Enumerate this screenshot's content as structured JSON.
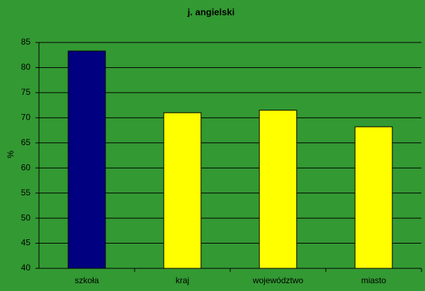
{
  "chart_data": {
    "type": "bar",
    "title": "j. angielski",
    "y_label": "%",
    "categories": [
      "szkoła",
      "kraj",
      "województwo",
      "miasto"
    ],
    "values": [
      83.3,
      71.0,
      71.5,
      68.2
    ],
    "colors": [
      "#000080",
      "#ffff00",
      "#ffff00",
      "#ffff00"
    ],
    "ylim": [
      40,
      85
    ],
    "yticks": [
      40,
      45,
      50,
      55,
      60,
      65,
      70,
      75,
      80,
      85
    ],
    "grid": true
  }
}
